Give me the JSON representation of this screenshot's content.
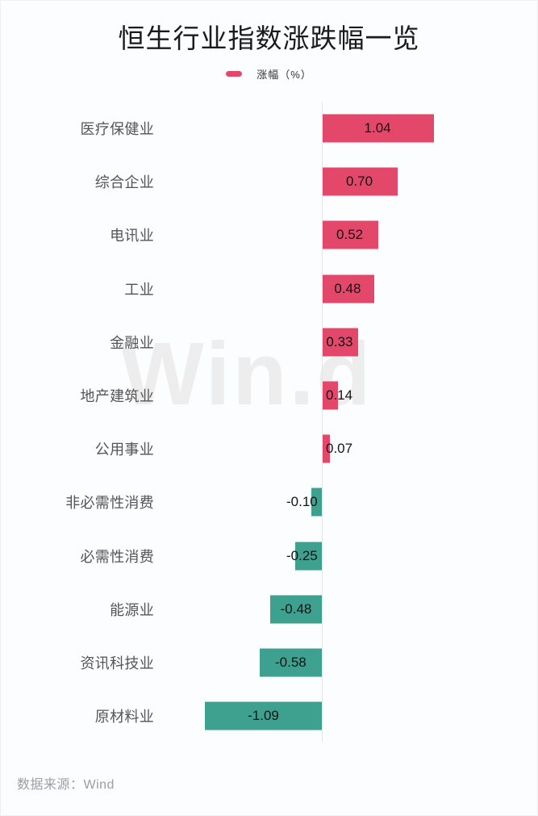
{
  "chart_data": {
    "type": "bar",
    "orientation": "horizontal",
    "title": "恒生行业指数涨跌幅一览",
    "legend_label": "涨幅（%）",
    "categories": [
      "医疗保健业",
      "综合企业",
      "电讯业",
      "工业",
      "金融业",
      "地产建筑业",
      "公用事业",
      "非必需性消费",
      "必需性消费",
      "能源业",
      "资讯科技业",
      "原材料业"
    ],
    "values": [
      1.04,
      0.7,
      0.52,
      0.48,
      0.33,
      0.14,
      0.07,
      -0.1,
      -0.25,
      -0.48,
      -0.58,
      -1.09
    ],
    "value_labels": [
      "1.04",
      "0.70",
      "0.52",
      "0.48",
      "0.33",
      "0.14",
      "0.07",
      "-0.10",
      "-0.25",
      "-0.48",
      "-0.58",
      "-1.09"
    ],
    "colors": {
      "positive": "#e3486b",
      "negative": "#3ea08e",
      "axis": "#e4e6e8",
      "title": "#1b1b1b",
      "category_text": "#555555",
      "value_text": "#141414",
      "watermark": "#ededed",
      "source_text": "#99a0a6"
    },
    "legend_position": "top-center",
    "grid": false
  },
  "watermark": {
    "text": "Win.d"
  },
  "footer": {
    "source": "数据来源：Wind"
  }
}
